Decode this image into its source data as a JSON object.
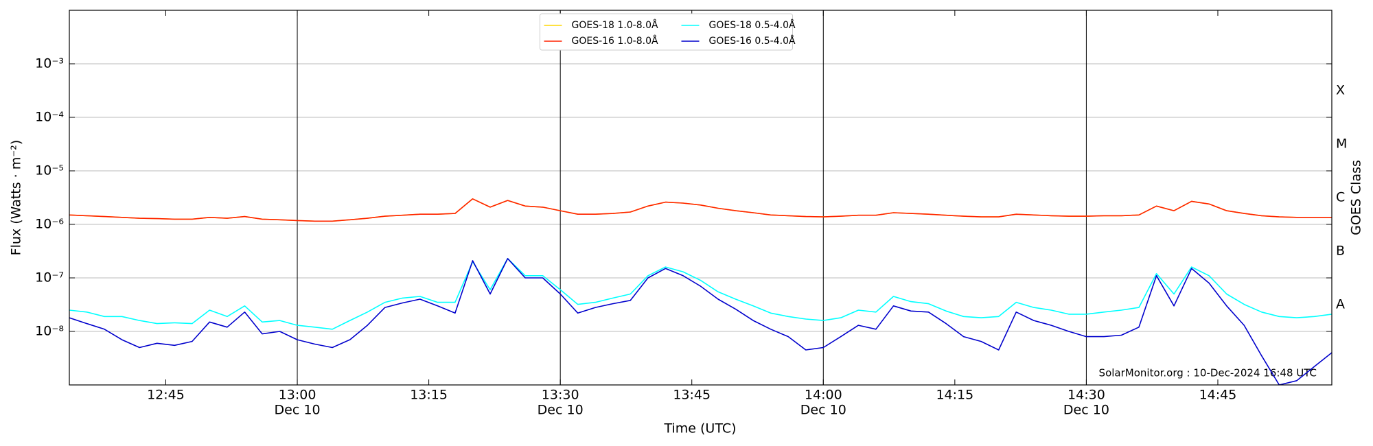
{
  "chart_data": {
    "type": "line",
    "xlabel": "Time (UTC)",
    "ylabel": "Flux (Watts · m⁻²)",
    "y2label": "GOES Class",
    "annotation": "SolarMonitor.org : 10-Dec-2024 16:48 UTC",
    "log_y": true,
    "grid": true,
    "legend": "upper center",
    "xlim": [
      "12:34",
      "14:58"
    ],
    "xticks": [
      {
        "value": "12:45",
        "label": "12:45"
      },
      {
        "value": "13:00",
        "label": "13:00",
        "date": "Dec 10"
      },
      {
        "value": "13:15",
        "label": "13:15"
      },
      {
        "value": "13:30",
        "label": "13:30",
        "date": "Dec 10"
      },
      {
        "value": "13:45",
        "label": "13:45"
      },
      {
        "value": "14:00",
        "label": "14:00",
        "date": "Dec 10"
      },
      {
        "value": "14:15",
        "label": "14:15"
      },
      {
        "value": "14:30",
        "label": "14:30",
        "date": "Dec 10"
      },
      {
        "value": "14:45",
        "label": "14:45"
      }
    ],
    "ylim": [
      1e-09,
      0.01
    ],
    "yticks": [
      {
        "value": 1e-08,
        "label": "10⁻⁸"
      },
      {
        "value": 1e-07,
        "label": "10⁻⁷"
      },
      {
        "value": 1e-06,
        "label": "10⁻⁶"
      },
      {
        "value": 1e-05,
        "label": "10⁻⁵"
      },
      {
        "value": 0.0001,
        "label": "10⁻⁴"
      },
      {
        "value": 0.001,
        "label": "10⁻³"
      }
    ],
    "class_labels": [
      {
        "value": 3.16e-08,
        "label": "A"
      },
      {
        "value": 3.16e-07,
        "label": "B"
      },
      {
        "value": 3.16e-06,
        "label": "C"
      },
      {
        "value": 3.16e-05,
        "label": "M"
      },
      {
        "value": 0.000316,
        "label": "X"
      }
    ],
    "x": [
      "12:34",
      "12:36",
      "12:38",
      "12:40",
      "12:42",
      "12:44",
      "12:46",
      "12:48",
      "12:50",
      "12:52",
      "12:54",
      "12:56",
      "12:58",
      "13:00",
      "13:02",
      "13:04",
      "13:06",
      "13:08",
      "13:10",
      "13:12",
      "13:14",
      "13:16",
      "13:18",
      "13:20",
      "13:22",
      "13:24",
      "13:26",
      "13:28",
      "13:30",
      "13:32",
      "13:34",
      "13:36",
      "13:38",
      "13:40",
      "13:42",
      "13:44",
      "13:46",
      "13:48",
      "13:50",
      "13:52",
      "13:54",
      "13:56",
      "13:58",
      "14:00",
      "14:02",
      "14:04",
      "14:06",
      "14:08",
      "14:10",
      "14:12",
      "14:14",
      "14:16",
      "14:18",
      "14:20",
      "14:22",
      "14:24",
      "14:26",
      "14:28",
      "14:30",
      "14:32",
      "14:34",
      "14:36",
      "14:38",
      "14:40",
      "14:42",
      "14:44",
      "14:46",
      "14:48",
      "14:50",
      "14:52",
      "14:54",
      "14:56",
      "14:58"
    ],
    "series": [
      {
        "name": "GOES-18 1.0-8.0Å",
        "color": "#ffd700",
        "values": [
          1.5e-06,
          1.45e-06,
          1.4e-06,
          1.35e-06,
          1.3e-06,
          1.28e-06,
          1.25e-06,
          1.25e-06,
          1.35e-06,
          1.3e-06,
          1.4e-06,
          1.25e-06,
          1.22e-06,
          1.18e-06,
          1.15e-06,
          1.15e-06,
          1.22e-06,
          1.3e-06,
          1.42e-06,
          1.48e-06,
          1.55e-06,
          1.55e-06,
          1.6e-06,
          3e-06,
          2.1e-06,
          2.8e-06,
          2.2e-06,
          2.1e-06,
          1.8e-06,
          1.55e-06,
          1.55e-06,
          1.6e-06,
          1.7e-06,
          2.2e-06,
          2.6e-06,
          2.5e-06,
          2.3e-06,
          2e-06,
          1.8e-06,
          1.65e-06,
          1.5e-06,
          1.45e-06,
          1.4e-06,
          1.38e-06,
          1.42e-06,
          1.48e-06,
          1.48e-06,
          1.65e-06,
          1.6e-06,
          1.55e-06,
          1.48e-06,
          1.42e-06,
          1.38e-06,
          1.38e-06,
          1.55e-06,
          1.5e-06,
          1.45e-06,
          1.42e-06,
          1.42e-06,
          1.45e-06,
          1.45e-06,
          1.5e-06,
          2.2e-06,
          1.8e-06,
          2.7e-06,
          2.4e-06,
          1.8e-06,
          1.6e-06,
          1.45e-06,
          1.38e-06,
          1.35e-06,
          1.35e-06,
          1.35e-06
        ]
      },
      {
        "name": "GOES-16 1.0-8.0Å",
        "color": "#ff2200",
        "values": [
          1.5e-06,
          1.45e-06,
          1.4e-06,
          1.35e-06,
          1.3e-06,
          1.28e-06,
          1.25e-06,
          1.25e-06,
          1.35e-06,
          1.3e-06,
          1.4e-06,
          1.25e-06,
          1.22e-06,
          1.18e-06,
          1.15e-06,
          1.15e-06,
          1.22e-06,
          1.3e-06,
          1.42e-06,
          1.48e-06,
          1.55e-06,
          1.55e-06,
          1.6e-06,
          3e-06,
          2.1e-06,
          2.8e-06,
          2.2e-06,
          2.1e-06,
          1.8e-06,
          1.55e-06,
          1.55e-06,
          1.6e-06,
          1.7e-06,
          2.2e-06,
          2.6e-06,
          2.5e-06,
          2.3e-06,
          2e-06,
          1.8e-06,
          1.65e-06,
          1.5e-06,
          1.45e-06,
          1.4e-06,
          1.38e-06,
          1.42e-06,
          1.48e-06,
          1.48e-06,
          1.65e-06,
          1.6e-06,
          1.55e-06,
          1.48e-06,
          1.42e-06,
          1.38e-06,
          1.38e-06,
          1.55e-06,
          1.5e-06,
          1.45e-06,
          1.42e-06,
          1.42e-06,
          1.45e-06,
          1.45e-06,
          1.5e-06,
          2.2e-06,
          1.8e-06,
          2.7e-06,
          2.4e-06,
          1.8e-06,
          1.6e-06,
          1.45e-06,
          1.38e-06,
          1.35e-06,
          1.35e-06,
          1.35e-06
        ]
      },
      {
        "name": "GOES-18 0.5-4.0Å",
        "color": "#00ffff",
        "values": [
          2.5e-08,
          2.3e-08,
          1.9e-08,
          1.9e-08,
          1.6e-08,
          1.4e-08,
          1.45e-08,
          1.4e-08,
          2.5e-08,
          1.9e-08,
          3e-08,
          1.5e-08,
          1.6e-08,
          1.3e-08,
          1.2e-08,
          1.1e-08,
          1.6e-08,
          2.3e-08,
          3.5e-08,
          4.2e-08,
          4.5e-08,
          3.5e-08,
          3.5e-08,
          2e-07,
          6e-08,
          2.3e-07,
          1.1e-07,
          1.1e-07,
          6e-08,
          3.2e-08,
          3.5e-08,
          4.2e-08,
          5e-08,
          1.1e-07,
          1.6e-07,
          1.3e-07,
          9e-08,
          5.5e-08,
          4e-08,
          3e-08,
          2.2e-08,
          1.9e-08,
          1.7e-08,
          1.6e-08,
          1.8e-08,
          2.5e-08,
          2.3e-08,
          4.5e-08,
          3.6e-08,
          3.3e-08,
          2.4e-08,
          1.9e-08,
          1.8e-08,
          1.9e-08,
          3.5e-08,
          2.8e-08,
          2.5e-08,
          2.1e-08,
          2.1e-08,
          2.3e-08,
          2.5e-08,
          2.8e-08,
          1.2e-07,
          5e-08,
          1.6e-07,
          1.1e-07,
          5e-08,
          3.2e-08,
          2.3e-08,
          1.9e-08,
          1.8e-08,
          1.9e-08,
          2.1e-08
        ]
      },
      {
        "name": "GOES-16 0.5-4.0Å",
        "color": "#0000cc",
        "values": [
          1.8e-08,
          1.4e-08,
          1.1e-08,
          7e-09,
          5e-09,
          6e-09,
          5.5e-09,
          6.5e-09,
          1.5e-08,
          1.2e-08,
          2.3e-08,
          9e-09,
          1e-08,
          7e-09,
          5.8e-09,
          5e-09,
          7e-09,
          1.3e-08,
          2.8e-08,
          3.4e-08,
          4e-08,
          3e-08,
          2.2e-08,
          2.1e-07,
          5e-08,
          2.3e-07,
          1e-07,
          1e-07,
          5e-08,
          2.2e-08,
          2.8e-08,
          3.3e-08,
          3.8e-08,
          1e-07,
          1.5e-07,
          1.1e-07,
          7e-08,
          4e-08,
          2.6e-08,
          1.6e-08,
          1.1e-08,
          8e-09,
          4.5e-09,
          5e-09,
          8e-09,
          1.3e-08,
          1.1e-08,
          3e-08,
          2.4e-08,
          2.3e-08,
          1.4e-08,
          8e-09,
          6.5e-09,
          4.5e-09,
          2.3e-08,
          1.6e-08,
          1.3e-08,
          1e-08,
          8e-09,
          8e-09,
          8.5e-09,
          1.2e-08,
          1.1e-07,
          3e-08,
          1.5e-07,
          8e-08,
          3e-08,
          1.3e-08,
          3.5e-09,
          1e-09,
          1.2e-09,
          2.2e-09,
          4e-09
        ]
      }
    ]
  }
}
